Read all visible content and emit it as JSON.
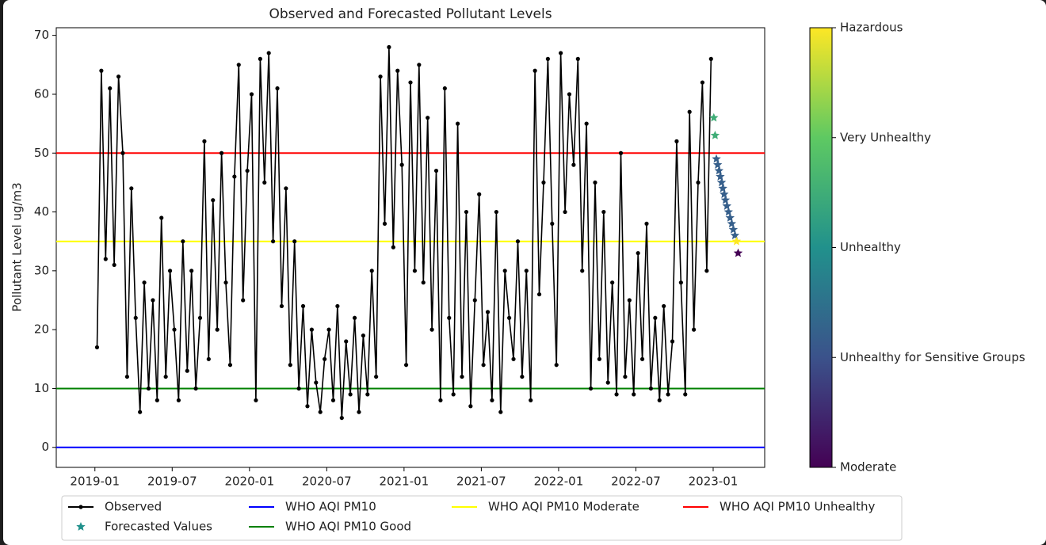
{
  "chart_data": {
    "type": "line",
    "title": "Observed and Forecasted Pollutant Levels",
    "y_label": "Pollutant Level ug/m3",
    "xlim": [
      "2018-10",
      "2023-05"
    ],
    "xticks": [
      "2019-01",
      "2019-07",
      "2020-01",
      "2020-07",
      "2021-01",
      "2021-07",
      "2022-01",
      "2022-07",
      "2023-01"
    ],
    "ylim": [
      -3.4,
      71.3
    ],
    "yticks": [
      0,
      10,
      20,
      30,
      40,
      50,
      60,
      70
    ],
    "series": [
      {
        "name": "Observed",
        "color": "#000000",
        "x": [
          "2019-01",
          "2019-01",
          "2019-01",
          "2019-02",
          "2019-02",
          "2019-02",
          "2019-03",
          "2019-03",
          "2019-03",
          "2019-04",
          "2019-04",
          "2019-04",
          "2019-05",
          "2019-05",
          "2019-05",
          "2019-06",
          "2019-06",
          "2019-06",
          "2019-07",
          "2019-07",
          "2019-07",
          "2019-08",
          "2019-08",
          "2019-08",
          "2019-09",
          "2019-09",
          "2019-09",
          "2019-10",
          "2019-10",
          "2019-10",
          "2019-11",
          "2019-11",
          "2019-11",
          "2019-12",
          "2019-12",
          "2019-12",
          "2020-01",
          "2020-01",
          "2020-01",
          "2020-02",
          "2020-02",
          "2020-02",
          "2020-03",
          "2020-03",
          "2020-03",
          "2020-04",
          "2020-04",
          "2020-04",
          "2020-05",
          "2020-05",
          "2020-05",
          "2020-06",
          "2020-06",
          "2020-06",
          "2020-07",
          "2020-07",
          "2020-07",
          "2020-08",
          "2020-08",
          "2020-08",
          "2020-09",
          "2020-09",
          "2020-09",
          "2020-10",
          "2020-10",
          "2020-10",
          "2020-11",
          "2020-11",
          "2020-11",
          "2020-12",
          "2020-12",
          "2020-12",
          "2021-01",
          "2021-01",
          "2021-01",
          "2021-02",
          "2021-02",
          "2021-02",
          "2021-03",
          "2021-03",
          "2021-03",
          "2021-04",
          "2021-04",
          "2021-04",
          "2021-05",
          "2021-05",
          "2021-05",
          "2021-06",
          "2021-06",
          "2021-06",
          "2021-07",
          "2021-07",
          "2021-07",
          "2021-08",
          "2021-08",
          "2021-08",
          "2021-09",
          "2021-09",
          "2021-09",
          "2021-10",
          "2021-10",
          "2021-10",
          "2021-11",
          "2021-11",
          "2021-11",
          "2021-12",
          "2021-12",
          "2021-12",
          "2022-01",
          "2022-01",
          "2022-01",
          "2022-02",
          "2022-02",
          "2022-02",
          "2022-03",
          "2022-03",
          "2022-03",
          "2022-04",
          "2022-04",
          "2022-04",
          "2022-05",
          "2022-05",
          "2022-05",
          "2022-06",
          "2022-06",
          "2022-06",
          "2022-07",
          "2022-07",
          "2022-07",
          "2022-08",
          "2022-08",
          "2022-08",
          "2022-09",
          "2022-09",
          "2022-09",
          "2022-10",
          "2022-10",
          "2022-10",
          "2022-11",
          "2022-11",
          "2022-11",
          "2022-12",
          "2022-12",
          "2022-12"
        ],
        "values": [
          17,
          64,
          32,
          61,
          31,
          63,
          50,
          12,
          44,
          22,
          6,
          28,
          10,
          25,
          8,
          39,
          12,
          30,
          20,
          8,
          35,
          13,
          30,
          10,
          22,
          52,
          15,
          42,
          20,
          50,
          28,
          14,
          46,
          65,
          25,
          47,
          60,
          8,
          66,
          45,
          67,
          35,
          61,
          24,
          44,
          14,
          35,
          10,
          24,
          7,
          20,
          11,
          6,
          15,
          20,
          8,
          24,
          5,
          18,
          9,
          22,
          6,
          19,
          9,
          30,
          12,
          63,
          38,
          68,
          34,
          64,
          48,
          14,
          62,
          30,
          65,
          28,
          56,
          20,
          47,
          8,
          61,
          22,
          9,
          55,
          12,
          40,
          7,
          25,
          43,
          14,
          23,
          8,
          40,
          6,
          30,
          22,
          15,
          35,
          12,
          30,
          8,
          64,
          26,
          45,
          66,
          38,
          14,
          67,
          40,
          60,
          48,
          66,
          30,
          55,
          10,
          45,
          15,
          40,
          11,
          28,
          9,
          50,
          12,
          25,
          9,
          33,
          15,
          38,
          10,
          22,
          8,
          24,
          9,
          18,
          52,
          28,
          9,
          57,
          20,
          45,
          62,
          30,
          66
        ]
      },
      {
        "name": "Forecasted Values",
        "color": "#21918c",
        "x": [
          "2023-01",
          "2023-01",
          "2023-01",
          "2023-01",
          "2023-01",
          "2023-01",
          "2023-01",
          "2023-01",
          "2023-01",
          "2023-01",
          "2023-02",
          "2023-02",
          "2023-02",
          "2023-02",
          "2023-02",
          "2023-02",
          "2023-02",
          "2023-02"
        ],
        "values": [
          56,
          53,
          49,
          48,
          47,
          46,
          45,
          44,
          43,
          42,
          41,
          40,
          39,
          38,
          37,
          36,
          35,
          33
        ],
        "color_values": [
          2.5,
          2.5,
          1.2,
          1.2,
          1.2,
          1.2,
          1.2,
          1.2,
          1.2,
          1.2,
          1.2,
          1.2,
          1.2,
          1.2,
          1.2,
          1.2,
          4,
          0
        ]
      }
    ],
    "hlines": [
      {
        "name": "WHO AQI PM10",
        "color": "#0000ff",
        "value": 0
      },
      {
        "name": "WHO AQI PM10 Good",
        "color": "#008000",
        "value": 10
      },
      {
        "name": "WHO AQI PM10 Moderate",
        "color": "#ffff00",
        "value": 35
      },
      {
        "name": "WHO AQI PM10 Unhealthy",
        "color": "#ff0000",
        "value": 50
      }
    ],
    "colorbar": {
      "lim": [
        0,
        4
      ],
      "ticks": [
        {
          "value": 0,
          "label": "Moderate"
        },
        {
          "value": 1,
          "label": "Unhealthy for Sensitive Groups"
        },
        {
          "value": 2,
          "label": "Unhealthy"
        },
        {
          "value": 3,
          "label": "Very Unhealthy"
        },
        {
          "value": 4,
          "label": "Hazardous"
        }
      ]
    }
  }
}
